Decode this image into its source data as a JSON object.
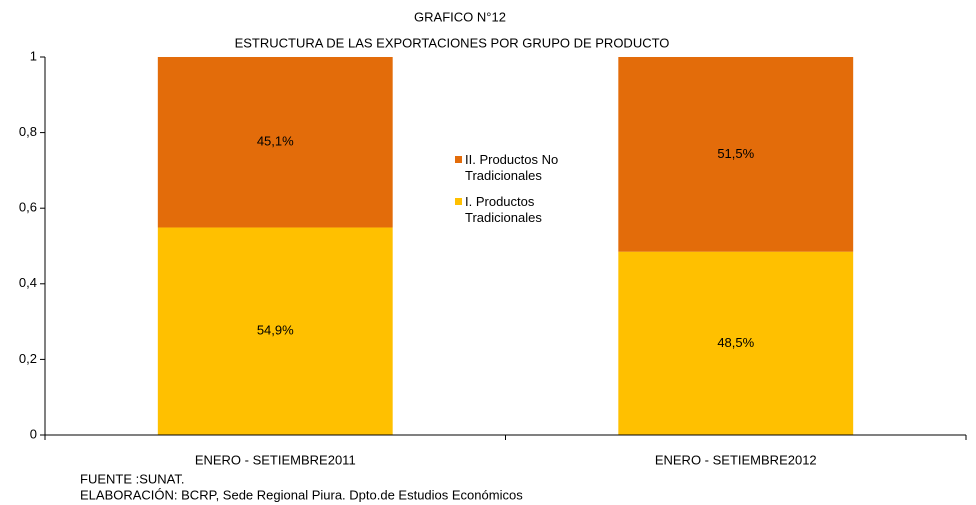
{
  "chart_data": {
    "type": "stacked_bar",
    "title": "GRAFICO N°12",
    "subtitle": "ESTRUCTURA DE LAS EXPORTACIONES POR GRUPO DE PRODUCTO",
    "categories": [
      "ENERO - SETIEMBRE2011",
      "ENERO - SETIEMBRE2012"
    ],
    "series": [
      {
        "name": "I. Productos Tradicionales",
        "color": "#FFC000",
        "values": [
          0.549,
          0.485
        ],
        "value_labels": [
          "54,9%",
          "48,5%"
        ]
      },
      {
        "name": "II. Productos No Tradicionales",
        "color": "#E36C0A",
        "values": [
          0.451,
          0.515
        ],
        "value_labels": [
          "45,1%",
          "51,5%"
        ]
      }
    ],
    "ylim": [
      0,
      1
    ],
    "yticks": [
      0,
      {
        "value": 0.2,
        "label": "0,2"
      },
      {
        "value": 0.4,
        "label": "0,4"
      },
      {
        "value": 0.6,
        "label": "0,6"
      },
      {
        "value": 0.8,
        "label": "0,8"
      },
      1
    ],
    "grid": false,
    "legend": "center",
    "notes": [
      "FUENTE :SUNAT.",
      "ELABORACIÓN: BCRP, Sede Regional Piura. Dpto.de Estudios Económicos"
    ]
  }
}
